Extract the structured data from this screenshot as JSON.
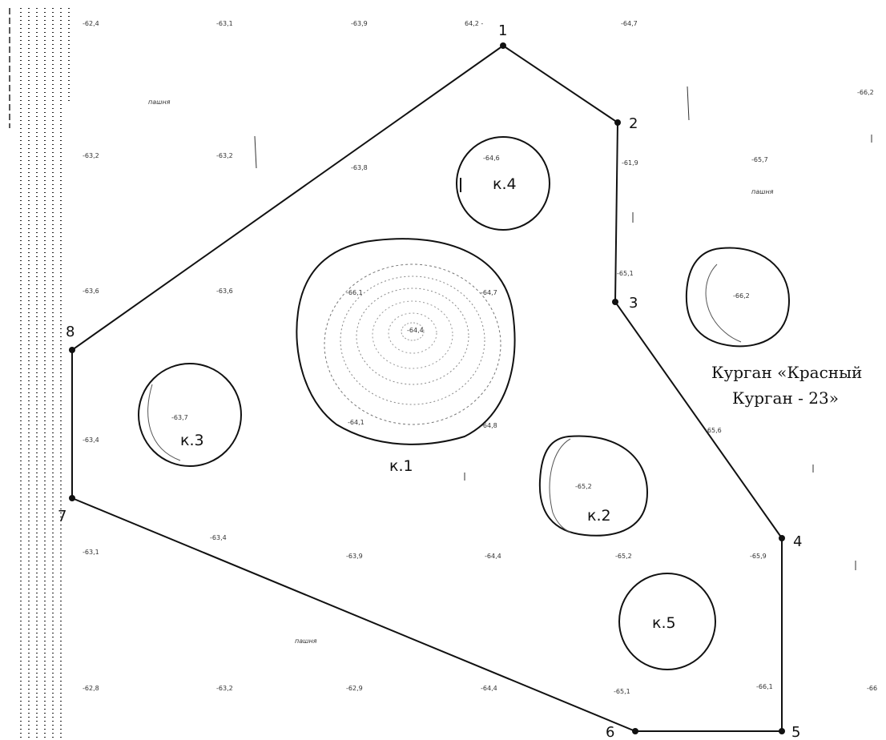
{
  "map": {
    "title_lines": [
      "Курган «Красный",
      "Курган - 23»"
    ],
    "land_labels": [
      "пашня",
      "пашня",
      "пашня"
    ],
    "vertices": [
      "1",
      "2",
      "3",
      "4",
      "5",
      "6",
      "7",
      "8"
    ],
    "mounds": [
      "к.1",
      "к.2",
      "к.3",
      "к.4",
      "к.5"
    ],
    "elevations": [
      "-62,4",
      "-63,1",
      "-63,9",
      "64,2 -",
      "-64,7",
      "-66,2",
      "-63,2",
      "-63,2",
      "-63,8",
      "-64,6",
      "-61,9",
      "-65,7",
      "-63,6",
      "-63,6",
      "-66,1",
      "-64,7",
      "-65,1",
      "-66,2",
      "-64,4",
      "-63,7",
      "-64,1",
      "-64,8",
      "-63,4",
      "-65,6",
      "-65,2",
      "-63,1",
      "-63,4",
      "-63,9",
      "-64,4",
      "-65,2",
      "-65,9",
      "-62,8",
      "-63,2",
      "-62,9",
      "-64,4",
      "-65,1",
      "-66,1",
      "-66"
    ]
  }
}
